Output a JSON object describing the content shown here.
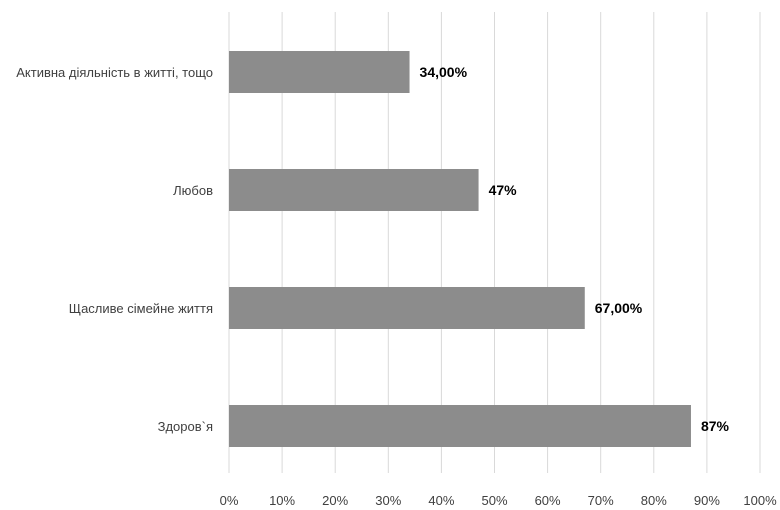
{
  "chart_data": {
    "type": "bar",
    "orientation": "horizontal",
    "categories": [
      "Активна діяльність в житті, тощо",
      "Любов",
      "Щасливе сімейне життя",
      "Здоров`я"
    ],
    "values": [
      34,
      47,
      67,
      87
    ],
    "data_labels": [
      "34,00%",
      "47%",
      "67,00%",
      "87%"
    ],
    "xlim": [
      0,
      100
    ],
    "x_ticks": [
      "0%",
      "10%",
      "20%",
      "30%",
      "40%",
      "50%",
      "60%",
      "70%",
      "80%",
      "90%",
      "100%"
    ],
    "grid": "vertical",
    "bar_color": "#8c8c8c"
  }
}
